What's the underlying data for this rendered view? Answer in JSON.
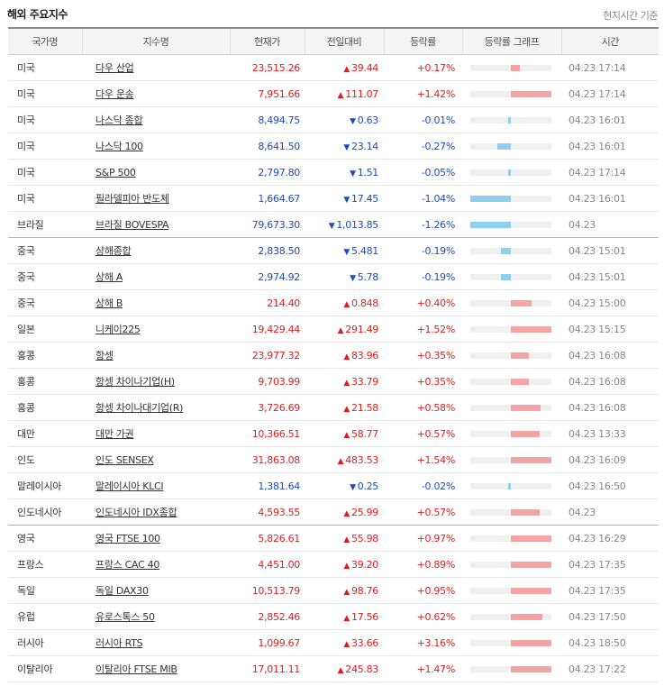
{
  "page": {
    "title": "해외 주요지수",
    "time_note": "현지시간 기준"
  },
  "table": {
    "headers": [
      "국가명",
      "지수명",
      "현재가",
      "전일대비",
      "등락률",
      "등락률 그래프",
      "시간"
    ],
    "rows": [
      {
        "country": "미국",
        "name": "다우 산업",
        "price": "23,515.26",
        "dir": "up",
        "change": "39.44",
        "rate": "+0.17%",
        "rate_value": 0.17,
        "time": "04.23 17:14"
      },
      {
        "country": "미국",
        "name": "다우 운송",
        "price": "7,951.66",
        "dir": "up",
        "change": "111.07",
        "rate": "+1.42%",
        "rate_value": 1.42,
        "time": "04.23 17:14"
      },
      {
        "country": "미국",
        "name": "나스닥 종합",
        "price": "8,494.75",
        "dir": "down",
        "change": "0.63",
        "rate": "-0.01%",
        "rate_value": -0.01,
        "time": "04.23 16:01"
      },
      {
        "country": "미국",
        "name": "나스닥 100",
        "price": "8,641.50",
        "dir": "down",
        "change": "23.14",
        "rate": "-0.27%",
        "rate_value": -0.27,
        "time": "04.23 16:01"
      },
      {
        "country": "미국",
        "name": "S&P 500",
        "price": "2,797.80",
        "dir": "down",
        "change": "1.51",
        "rate": "-0.05%",
        "rate_value": -0.05,
        "time": "04.23 17:14"
      },
      {
        "country": "미국",
        "name": "필라델피아 반도체",
        "price": "1,664.67",
        "dir": "down",
        "change": "17.45",
        "rate": "-1.04%",
        "rate_value": -1.04,
        "time": "04.23 16:01"
      },
      {
        "country": "브라질",
        "name": "브라질 BOVESPA",
        "price": "79,673.30",
        "dir": "down",
        "change": "1,013.85",
        "rate": "-1.26%",
        "rate_value": -1.26,
        "time": "04.23",
        "group_end": true
      },
      {
        "country": "중국",
        "name": "상해종합",
        "price": "2,838.50",
        "dir": "down",
        "change": "5.481",
        "rate": "-0.19%",
        "rate_value": -0.19,
        "time": "04.23 15:01"
      },
      {
        "country": "중국",
        "name": "상해 A",
        "price": "2,974.92",
        "dir": "down",
        "change": "5.78",
        "rate": "-0.19%",
        "rate_value": -0.19,
        "time": "04.23 15:01"
      },
      {
        "country": "중국",
        "name": "상해 B",
        "price": "214.40",
        "dir": "up",
        "change": "0.848",
        "rate": "+0.40%",
        "rate_value": 0.4,
        "time": "04.23 15:00"
      },
      {
        "country": "일본",
        "name": "니케이225",
        "price": "19,429.44",
        "dir": "up",
        "change": "291.49",
        "rate": "+1.52%",
        "rate_value": 1.52,
        "time": "04.23 15:15"
      },
      {
        "country": "홍콩",
        "name": "항셍",
        "price": "23,977.32",
        "dir": "up",
        "change": "83.96",
        "rate": "+0.35%",
        "rate_value": 0.35,
        "time": "04.23 16:08"
      },
      {
        "country": "홍콩",
        "name": "항셍 차이나기업(H)",
        "price": "9,703.99",
        "dir": "up",
        "change": "33.79",
        "rate": "+0.35%",
        "rate_value": 0.35,
        "time": "04.23 16:08"
      },
      {
        "country": "홍콩",
        "name": "항셍 차이나대기업(R)",
        "price": "3,726.69",
        "dir": "up",
        "change": "21.58",
        "rate": "+0.58%",
        "rate_value": 0.58,
        "time": "04.23 16:08"
      },
      {
        "country": "대만",
        "name": "대만 가권",
        "price": "10,366.51",
        "dir": "up",
        "change": "58.77",
        "rate": "+0.57%",
        "rate_value": 0.57,
        "time": "04.23 13:33"
      },
      {
        "country": "인도",
        "name": "인도 SENSEX",
        "price": "31,863.08",
        "dir": "up",
        "change": "483.53",
        "rate": "+1.54%",
        "rate_value": 1.54,
        "time": "04.23 16:09"
      },
      {
        "country": "말레이시아",
        "name": "말레이시아 KLCI",
        "price": "1,381.64",
        "dir": "down",
        "change": "0.25",
        "rate": "-0.02%",
        "rate_value": -0.02,
        "time": "04.23 16:50"
      },
      {
        "country": "인도네시아",
        "name": "인도네시아 IDX종합",
        "price": "4,593.55",
        "dir": "up",
        "change": "25.99",
        "rate": "+0.57%",
        "rate_value": 0.57,
        "time": "04.23",
        "group_end": true
      },
      {
        "country": "영국",
        "name": "영국 FTSE 100",
        "price": "5,826.61",
        "dir": "up",
        "change": "55.98",
        "rate": "+0.97%",
        "rate_value": 0.97,
        "time": "04.23 16:29"
      },
      {
        "country": "프랑스",
        "name": "프랑스 CAC 40",
        "price": "4,451.00",
        "dir": "up",
        "change": "39.20",
        "rate": "+0.89%",
        "rate_value": 0.89,
        "time": "04.23 17:35"
      },
      {
        "country": "독일",
        "name": "독일 DAX30",
        "price": "10,513.79",
        "dir": "up",
        "change": "98.76",
        "rate": "+0.95%",
        "rate_value": 0.95,
        "time": "04.23 17:35"
      },
      {
        "country": "유럽",
        "name": "유로스톡스 50",
        "price": "2,852.46",
        "dir": "up",
        "change": "17.56",
        "rate": "+0.62%",
        "rate_value": 0.62,
        "time": "04.23 17:50"
      },
      {
        "country": "러시아",
        "name": "러시아 RTS",
        "price": "1,099.67",
        "dir": "up",
        "change": "33.66",
        "rate": "+3.16%",
        "rate_value": 3.16,
        "time": "04.23 18:50"
      },
      {
        "country": "이탈리아",
        "name": "이탈리아 FTSE MIB",
        "price": "17,011.11",
        "dir": "up",
        "change": "245.83",
        "rate": "+1.47%",
        "rate_value": 1.47,
        "time": "04.23 17:22"
      }
    ]
  },
  "icons": {
    "up": "triangle-up-icon",
    "down": "triangle-down-icon"
  },
  "colors": {
    "up": "#e01d1d",
    "down": "#1a4bbf",
    "bar_up": "#f5a3a3",
    "bar_down": "#8fd0ec"
  }
}
